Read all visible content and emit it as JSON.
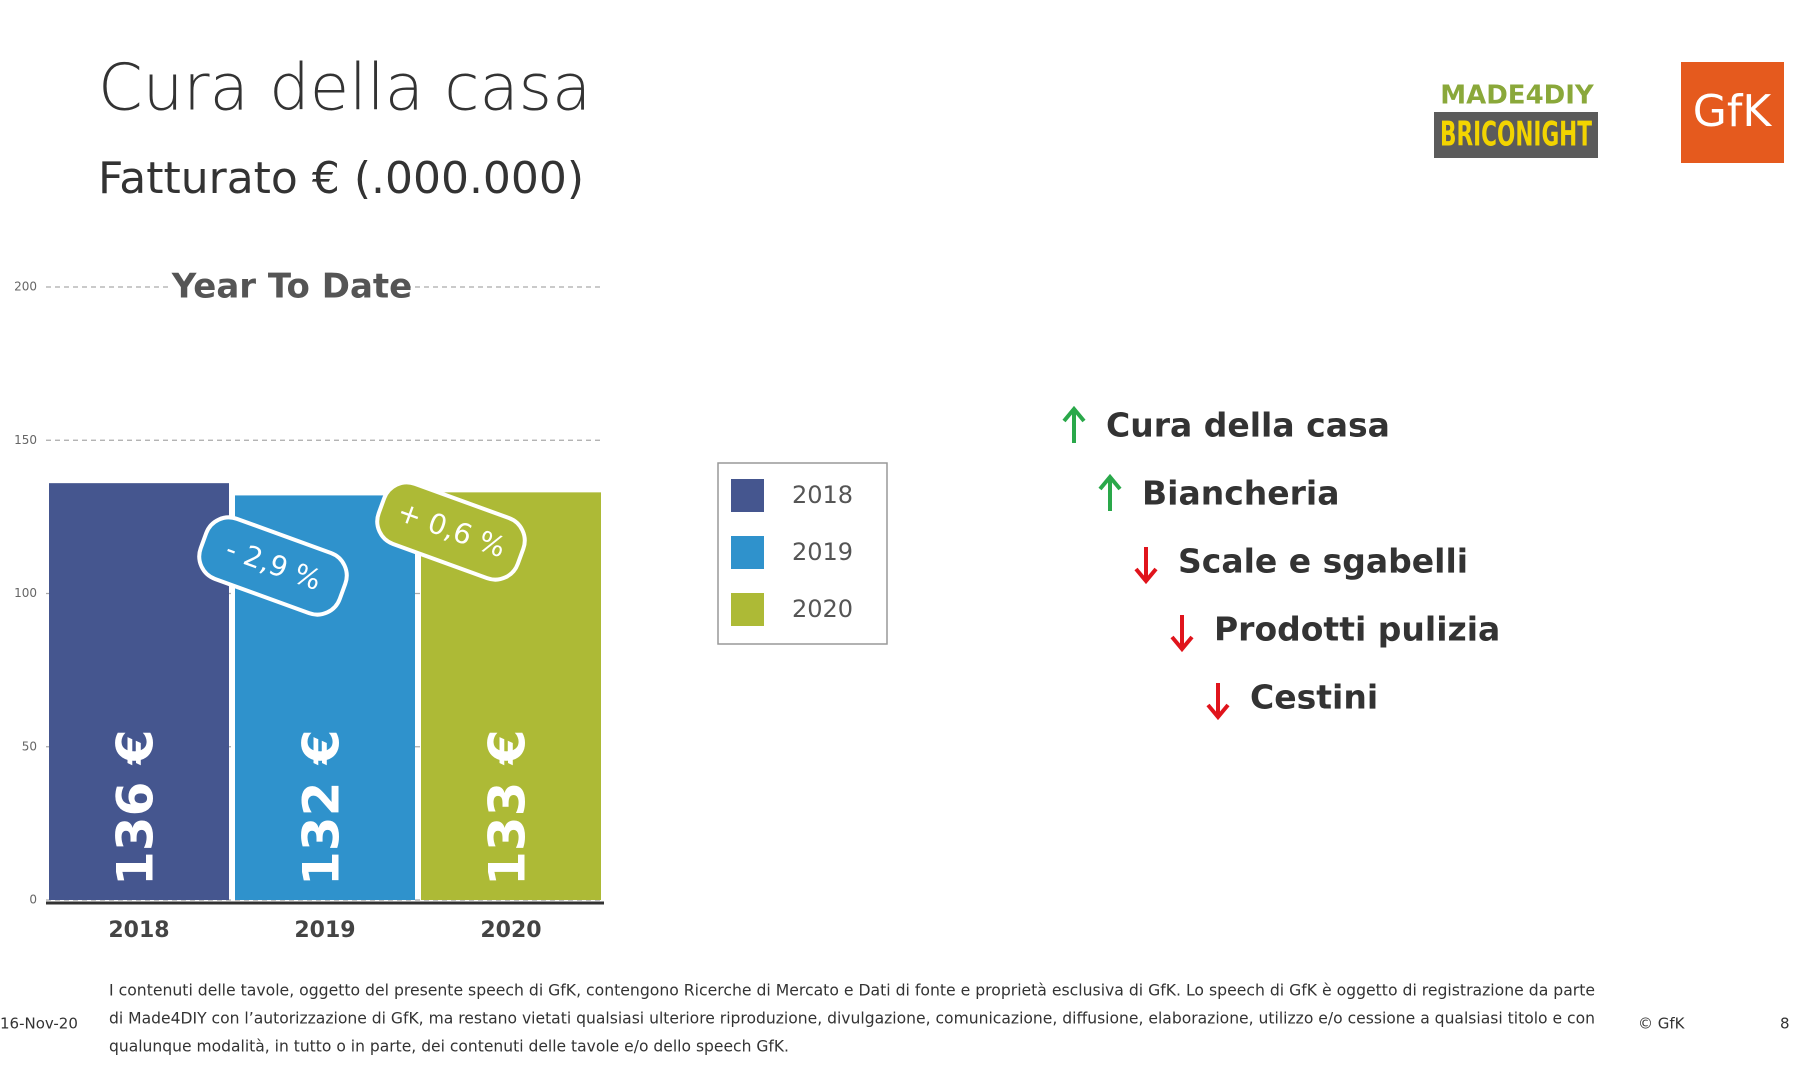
{
  "header": {
    "title": "Cura della casa",
    "subtitle": "Fatturato € (.000.000)"
  },
  "logos": {
    "made": "MADE4DIY",
    "brico": "BRICONIGHT",
    "gfk": "GfK"
  },
  "chart_data": {
    "type": "bar",
    "title": "Year To Date",
    "categories": [
      "2018",
      "2019",
      "2020"
    ],
    "values": [
      136,
      132,
      133
    ],
    "value_labels": [
      "136 €",
      "132 €",
      "133 €"
    ],
    "colors": [
      "#45568f",
      "#2f92cc",
      "#adba36"
    ],
    "ylim": [
      0,
      200
    ],
    "yticks": [
      0,
      50,
      100,
      150,
      200
    ],
    "grid": true,
    "annotations": [
      "- 2,9 %",
      "+ 0,6 %"
    ]
  },
  "trends": [
    "Cura della casa",
    "Biancheria",
    "Scale e sgabelli",
    "Prodotti pulizia",
    "Cestini"
  ],
  "footer": {
    "date": "16-Nov-20",
    "disclaimer": [
      "I contenuti delle tavole, oggetto del presente speech di GfK, contengono Ricerche di Mercato e Dati di fonte e proprietà esclusiva di GfK. Lo speech di GfK è oggetto di registrazione da parte",
      "di Made4DIY con l’autorizzazione di GfK, ma restano vietati qualsiasi ulteriore riproduzione, divulgazione, comunicazione, diffusione, elaborazione, utilizzo e/o cessione a qualsiasi titolo e con",
      "qualunque modalità, in tutto o in parte, dei contenuti delle tavole e/o dello speech GfK."
    ],
    "copyright": "© GfK",
    "page": "8"
  }
}
